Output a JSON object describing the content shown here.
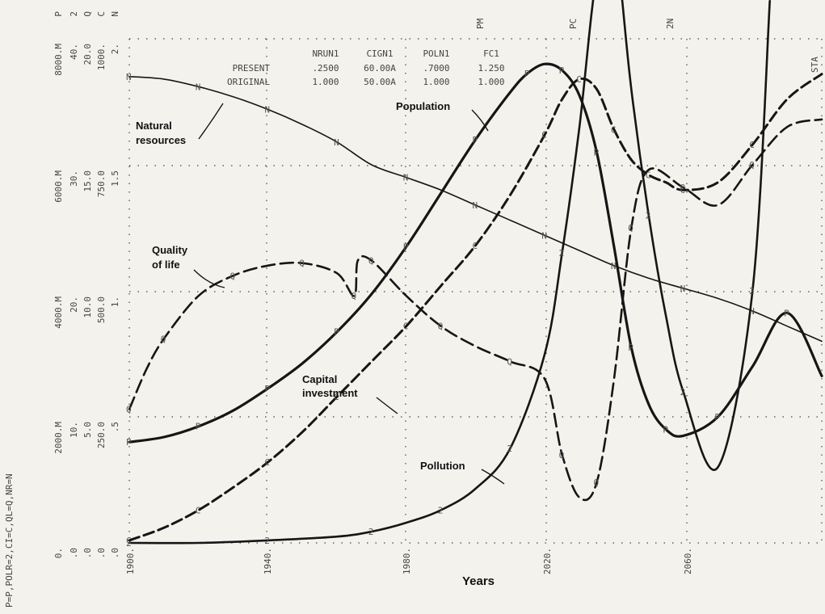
{
  "chart_data": {
    "type": "line",
    "xlabel": "Years",
    "xlim": [
      1900,
      2100
    ],
    "x_ticks": [
      "1900.",
      "1940.",
      "1980.",
      "2020.",
      "2060."
    ],
    "y_scales": [
      {
        "name": "P",
        "label": "P",
        "ticks": [
          "0.",
          "2000.M",
          "4000.M",
          "6000.M",
          "8000.M"
        ]
      },
      {
        "name": "POLR",
        "label": "2",
        "ticks": [
          ".0",
          "10.",
          "20.",
          "30.",
          "40."
        ]
      },
      {
        "name": "QL",
        "label": "Q",
        "ticks": [
          ".0",
          "5.0",
          "10.0",
          "15.0",
          "20.0"
        ]
      },
      {
        "name": "CI",
        "label": "C",
        "ticks": [
          ".0",
          "250.0",
          "500.0",
          "750.0",
          "1000."
        ]
      },
      {
        "name": "NR",
        "label": "N",
        "ticks": [
          ".0",
          ".5",
          "1.",
          "1.5",
          "2."
        ]
      }
    ],
    "scale_legend": "P=P,POLR=2,CI=C,QL=Q,NR=N",
    "parameter_table": {
      "columns": [
        "NRUN1",
        "CIGN1",
        "POLN1",
        "FC1"
      ],
      "rows": [
        {
          "label": "PRESENT",
          "values": [
            ".2500",
            "60.00A",
            ".7000",
            "1.250"
          ]
        },
        {
          "label": "ORIGINAL",
          "values": [
            "1.000",
            "50.00A",
            "1.000",
            "1.000"
          ]
        }
      ]
    },
    "edge_markers": [
      "PM",
      "PC",
      "2N",
      "STA"
    ],
    "series": [
      {
        "name": "Natural resources",
        "marker": "N",
        "x": [
          1900,
          1910,
          1920,
          1930,
          1940,
          1950,
          1960,
          1970,
          1980,
          1990,
          2000,
          2010,
          2020,
          2030,
          2040,
          2050,
          2060,
          2070,
          2080,
          2090,
          2100
        ],
        "y": [
          1.85,
          1.84,
          1.81,
          1.77,
          1.72,
          1.66,
          1.59,
          1.5,
          1.45,
          1.4,
          1.34,
          1.28,
          1.22,
          1.16,
          1.1,
          1.05,
          1.01,
          0.97,
          0.92,
          0.86,
          0.8
        ]
      },
      {
        "name": "Population",
        "marker": "P",
        "x": [
          1900,
          1910,
          1920,
          1930,
          1940,
          1950,
          1960,
          1970,
          1980,
          1990,
          2000,
          2010,
          2015,
          2020,
          2025,
          2030,
          2035,
          2040,
          2045,
          2050,
          2055,
          2060,
          2070,
          2080,
          2090,
          2100
        ],
        "y": [
          1600,
          1680,
          1850,
          2100,
          2450,
          2850,
          3350,
          3950,
          4700,
          5550,
          6400,
          7150,
          7450,
          7600,
          7500,
          7100,
          6200,
          4700,
          3100,
          2200,
          1800,
          1700,
          2000,
          2800,
          3650,
          2650
        ]
      },
      {
        "name": "Pollution",
        "marker": "2",
        "x": [
          1900,
          1920,
          1940,
          1960,
          1970,
          1980,
          1990,
          2000,
          2010,
          2020,
          2025,
          2030,
          2035,
          2040,
          2042,
          2045,
          2050,
          2055,
          2060,
          2070,
          2080,
          2085
        ],
        "y": [
          0,
          0,
          0.2,
          0.5,
          0.9,
          1.6,
          2.6,
          4.3,
          7.5,
          15,
          23,
          33,
          45,
          48,
          44,
          36,
          26,
          18,
          12,
          6,
          20,
          43
        ]
      },
      {
        "name": "Quality of life",
        "marker": "Q",
        "x": [
          1900,
          1905,
          1910,
          1920,
          1930,
          1940,
          1950,
          1960,
          1965,
          1966,
          1970,
          1980,
          1990,
          2000,
          2010,
          2020,
          2025,
          2030,
          2035,
          2040,
          2045,
          2050,
          2060,
          2070,
          2080,
          2090,
          2100
        ],
        "y": [
          5.3,
          6.9,
          8.1,
          9.8,
          10.6,
          11.0,
          11.1,
          10.7,
          9.8,
          11.2,
          11.2,
          9.8,
          8.6,
          7.8,
          7.2,
          6.5,
          3.5,
          1.8,
          2.4,
          6.5,
          12.5,
          14.8,
          14.1,
          13.4,
          15.0,
          16.5,
          16.8
        ]
      },
      {
        "name": "Capital investment",
        "marker": "C",
        "x": [
          1900,
          1910,
          1920,
          1930,
          1940,
          1950,
          1960,
          1970,
          1980,
          1990,
          2000,
          2010,
          2020,
          2025,
          2030,
          2035,
          2040,
          2045,
          2050,
          2055,
          2060,
          2070,
          2080,
          2090,
          2100
        ],
        "y": [
          5,
          30,
          65,
          110,
          160,
          220,
          290,
          360,
          430,
          510,
          590,
          690,
          810,
          880,
          920,
          900,
          820,
          760,
          730,
          715,
          700,
          715,
          790,
          880,
          930
        ]
      }
    ],
    "annotations": [
      "Natural resources",
      "Population",
      "Quality of life",
      "Capital investment",
      "Pollution"
    ]
  }
}
